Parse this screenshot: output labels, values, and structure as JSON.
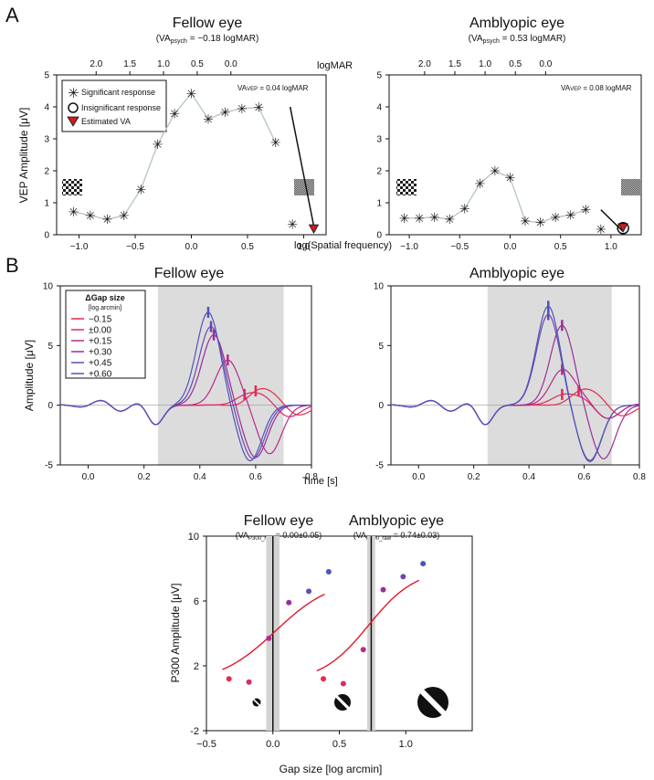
{
  "panels": {
    "a": {
      "label": "A",
      "fellow": {
        "title": "Fellow eye",
        "va_psych_prefix": "(VA",
        "va_psych_sub": "psych",
        "va_psych_value": " = −0.18 logMAR)",
        "va_vep_prefix": "VA",
        "va_vep_sub": "VEP",
        "va_vep_value": " = 0.04 logMAR"
      },
      "amblyopic": {
        "title": "Amblyopic eye",
        "va_psych_prefix": "(VA",
        "va_psych_sub": "psych",
        "va_psych_value": " = 0.53 logMAR)",
        "va_vep_prefix": "VA",
        "va_vep_sub": "VEP",
        "va_vep_value": " = 0.08 logMAR"
      },
      "legend": {
        "significant": "Significant response",
        "insignificant": "Insignificant response",
        "estimated": "Estimated VA"
      },
      "ylabel": "VEP Amplitude [μV]",
      "xlabel": "log(Spatial frequency)",
      "top_axis_label": "logMAR"
    },
    "b": {
      "label": "B",
      "fellow_title": "Fellow eye",
      "amblyopic_title": "Amblyopic eye",
      "ylabel": "Amplitude [μV]",
      "xlabel": "Time [s]",
      "legend_title": "ΔGap size",
      "legend_subtitle": "[log arcmin]"
    },
    "c": {
      "fellow_title": "Fellow eye",
      "amblyopic_title": "Amblyopic eye",
      "fellow_va_prefix": "(VA",
      "fellow_va_sub": "P300_raw",
      "fellow_va_value": " = 0.00±0.05)",
      "amblyopic_va_prefix": "(VA",
      "amblyopic_va_sub": "P300_raw",
      "amblyopic_va_value": " = 0.74±0.03)",
      "ylabel": "P300 Amplitude [μV]",
      "xlabel": "Gap size [log arcmin]"
    }
  },
  "chart_data": [
    {
      "id": "A-fellow",
      "type": "line",
      "title": "Fellow eye",
      "xlabel": "log(Spatial frequency)",
      "ylabel": "VEP Amplitude [μV]",
      "xlim": [
        -1.2,
        1.2
      ],
      "ylim": [
        0,
        5
      ],
      "xticks": [
        -1.0,
        -0.5,
        0.0,
        0.5,
        1.0
      ],
      "xtick_labels": [
        "−1.0",
        "−0.5",
        "0.0",
        "0.5",
        "1.0"
      ],
      "yticks": [
        0,
        1,
        2,
        3,
        4,
        5
      ],
      "top_axis": {
        "label": "logMAR",
        "ticks": [
          -0.848,
          -0.548,
          -0.248,
          0.052,
          0.352
        ],
        "tick_labels": [
          "2.0",
          "1.5",
          "1.0",
          "0.5",
          "0.0"
        ]
      },
      "x": [
        -1.05,
        -0.9,
        -0.75,
        -0.6,
        -0.45,
        -0.3,
        -0.15,
        0.0,
        0.15,
        0.3,
        0.45,
        0.6,
        0.75,
        0.9
      ],
      "y": [
        0.72,
        0.6,
        0.48,
        0.6,
        1.42,
        2.83,
        3.78,
        4.42,
        3.62,
        3.83,
        3.95,
        3.98,
        2.88,
        0.33
      ],
      "fit_line": {
        "x": [
          0.88,
          1.1
        ],
        "y": [
          4.0,
          0.1
        ]
      },
      "estimated_va": {
        "x": 1.09,
        "y": 0.08
      }
    },
    {
      "id": "A-amblyopic",
      "type": "line",
      "title": "Amblyopic eye",
      "xlim": [
        -1.2,
        1.3
      ],
      "ylim": [
        0,
        5
      ],
      "xticks": [
        -1.0,
        -0.5,
        0.0,
        0.5,
        1.0
      ],
      "xtick_labels": [
        "−1.0",
        "−0.5",
        "0.0",
        "0.5",
        "1.0"
      ],
      "yticks": [
        0,
        1,
        2,
        3,
        4,
        5
      ],
      "top_axis": {
        "label": "",
        "ticks": [
          -0.848,
          -0.548,
          -0.248,
          0.052,
          0.352
        ],
        "tick_labels": [
          "2.0",
          "1.5",
          "1.0",
          "0.5",
          "0.0"
        ]
      },
      "x": [
        -1.05,
        -0.9,
        -0.75,
        -0.6,
        -0.45,
        -0.3,
        -0.15,
        0.0,
        0.15,
        0.3,
        0.45,
        0.6,
        0.75,
        0.9
      ],
      "y": [
        0.52,
        0.52,
        0.55,
        0.48,
        0.82,
        1.6,
        2.0,
        1.78,
        0.43,
        0.38,
        0.55,
        0.62,
        0.78,
        0.17
      ],
      "fit_line": {
        "x": [
          0.9,
          1.12
        ],
        "y": [
          0.78,
          0.1
        ]
      },
      "estimated_va": {
        "x": 1.12,
        "y": 0.12
      }
    },
    {
      "id": "B-fellow",
      "type": "line",
      "title": "Fellow eye",
      "xlabel": "Time [s]",
      "ylabel": "Amplitude [μV]",
      "xlim": [
        -0.1,
        0.8
      ],
      "ylim": [
        -5,
        10
      ],
      "xticks": [
        0.0,
        0.2,
        0.4,
        0.6,
        0.8
      ],
      "xtick_labels": [
        "0.0",
        "0.2",
        "0.4",
        "0.6",
        "0.8"
      ],
      "yticks": [
        -5,
        0,
        5,
        10
      ],
      "shade": [
        0.25,
        0.7
      ],
      "series": [
        {
          "name": "−0.15",
          "color": "#e8294a",
          "peak_time": 0.6,
          "peak_amp": 1.2
        },
        {
          "name": "±0.00",
          "color": "#dc2a60",
          "peak_time": 0.56,
          "peak_amp": 0.9
        },
        {
          "name": "+0.15",
          "color": "#b62a8a",
          "peak_time": 0.5,
          "peak_amp": 3.8
        },
        {
          "name": "+0.30",
          "color": "#9a2e9a",
          "peak_time": 0.45,
          "peak_amp": 5.9
        },
        {
          "name": "+0.45",
          "color": "#6a48b0",
          "peak_time": 0.44,
          "peak_amp": 6.6
        },
        {
          "name": "+0.60",
          "color": "#4e55b8",
          "peak_time": 0.43,
          "peak_amp": 7.8
        }
      ]
    },
    {
      "id": "B-amblyopic",
      "type": "line",
      "title": "Amblyopic eye",
      "xlim": [
        -0.1,
        0.8
      ],
      "ylim": [
        -5,
        10
      ],
      "xticks": [
        0.0,
        0.2,
        0.4,
        0.6,
        0.8
      ],
      "xtick_labels": [
        "0.0",
        "0.2",
        "0.4",
        "0.6",
        "0.8"
      ],
      "yticks": [
        -5,
        0,
        5,
        10
      ],
      "shade": [
        0.25,
        0.7
      ],
      "series": [
        {
          "name": "−0.15",
          "color": "#e8294a",
          "peak_time": 0.58,
          "peak_amp": 1.2
        },
        {
          "name": "±0.00",
          "color": "#dc2a60",
          "peak_time": 0.52,
          "peak_amp": 0.9
        },
        {
          "name": "+0.15",
          "color": "#b62a8a",
          "peak_time": 0.52,
          "peak_amp": 3.0
        },
        {
          "name": "+0.30",
          "color": "#9a2e9a",
          "peak_time": 0.52,
          "peak_amp": 6.7
        },
        {
          "name": "+0.45",
          "color": "#6a48b0",
          "peak_time": 0.47,
          "peak_amp": 7.6
        },
        {
          "name": "+0.60",
          "color": "#4e55b8",
          "peak_time": 0.47,
          "peak_amp": 8.3
        }
      ]
    },
    {
      "id": "C",
      "type": "scatter",
      "xlabel": "Gap size [log arcmin]",
      "ylabel": "P300 Amplitude [μV]",
      "xlim": [
        -0.5,
        1.5
      ],
      "ylim": [
        -2,
        10
      ],
      "xticks": [
        -0.5,
        0.0,
        0.5,
        1.0
      ],
      "xtick_labels": [
        "−0.5",
        "0.0",
        "0.5",
        "1.0"
      ],
      "yticks": [
        -2,
        2,
        6,
        10
      ],
      "series": [
        {
          "name": "Fellow eye",
          "x": [
            -0.33,
            -0.18,
            -0.03,
            0.12,
            0.27,
            0.42
          ],
          "y": [
            1.2,
            1.0,
            3.7,
            5.9,
            6.6,
            7.8
          ],
          "colors": [
            "#e8294a",
            "#dc2a60",
            "#b62a8a",
            "#9a2e9a",
            "#6a48b0",
            "#4e55b8"
          ],
          "va": 0.0,
          "va_sd": 0.05,
          "fit": {
            "x0": 0.02,
            "k": 14,
            "lo": 0.9,
            "hi": 7.4
          }
        },
        {
          "name": "Amblyopic eye",
          "x": [
            0.38,
            0.53,
            0.68,
            0.83,
            0.98,
            1.13
          ],
          "y": [
            1.2,
            0.9,
            3.0,
            6.7,
            7.5,
            8.3
          ],
          "colors": [
            "#e8294a",
            "#dc2a60",
            "#b62a8a",
            "#9a2e9a",
            "#6a48b0",
            "#4e55b8"
          ],
          "va": 0.74,
          "va_sd": 0.03,
          "fit": {
            "x0": 0.72,
            "k": 17,
            "lo": 1.0,
            "hi": 8.0
          }
        }
      ]
    }
  ]
}
